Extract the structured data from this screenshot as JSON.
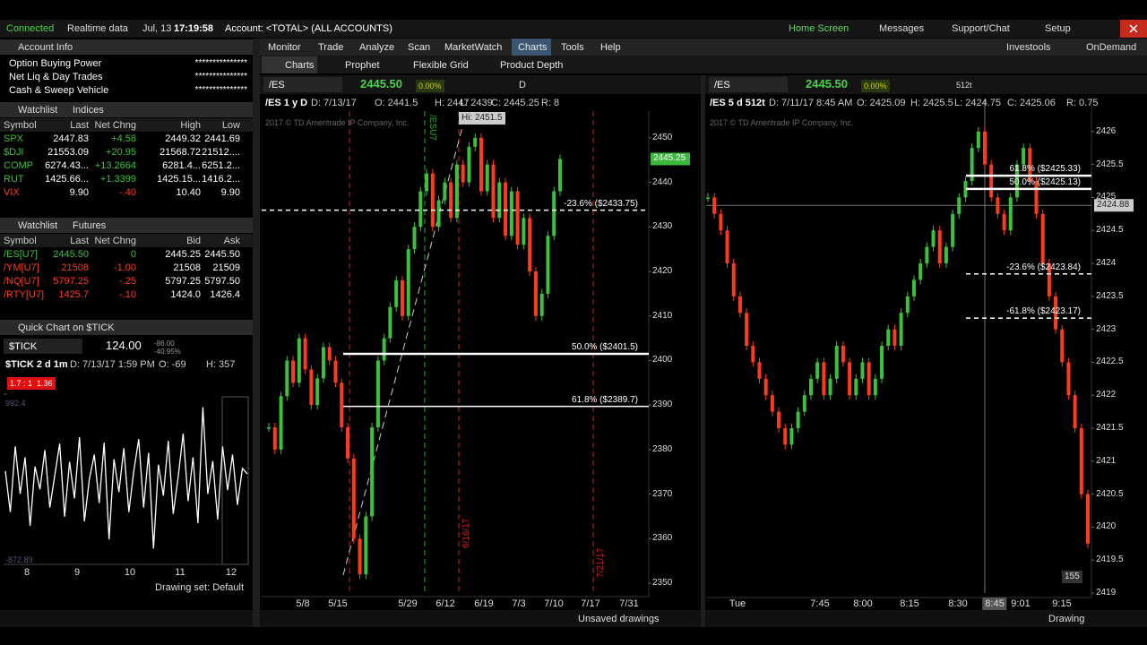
{
  "status_bar": {
    "connection": "Connected",
    "data_mode": "Realtime data",
    "date": "Jul, 13",
    "time": "17:19:58",
    "account": "Account: <TOTAL> (ALL ACCOUNTS)",
    "links": [
      "Home Screen",
      "Messages",
      "Support/Chat",
      "Setup"
    ]
  },
  "menu": {
    "items": [
      "Monitor",
      "Trade",
      "Analyze",
      "Scan",
      "MarketWatch",
      "Charts",
      "Tools",
      "Help"
    ],
    "right_links": [
      "Investools",
      "OnDemand"
    ]
  },
  "tabs": [
    "Charts",
    "Prophet",
    "Flexible Grid",
    "Product Depth"
  ],
  "account_info": {
    "title": "Account Info",
    "rows": [
      [
        "Option Buying Power",
        "***************"
      ],
      [
        "Net Liq & Day Trades",
        "***************"
      ],
      [
        "Cash & Sweep Vehicle",
        "***************"
      ]
    ]
  },
  "watchlists": [
    {
      "title": "Watchlist",
      "list": "Indices",
      "columns": [
        "Symbol",
        "Last",
        "Net Chng",
        "High",
        "Low"
      ],
      "rows": [
        [
          "SPX",
          "2447.83",
          "+4.58",
          "2449.32",
          "2441.69"
        ],
        [
          "$DJI",
          "21553.09",
          "+20.95",
          "21568.72",
          "21512...."
        ],
        [
          "COMP",
          "6274.43...",
          "+13.2664",
          "6281.4...",
          "6251.2..."
        ],
        [
          "RUT",
          "1425.66...",
          "+1.3399",
          "1425.15...",
          "1416.2..."
        ],
        [
          "VIX",
          "9.90",
          "-.40",
          "10.40",
          "9.90"
        ]
      ]
    },
    {
      "title": "Watchlist",
      "list": "Futures",
      "columns": [
        "Symbol",
        "Last",
        "Net Chng",
        "Bid",
        "Ask"
      ],
      "rows": [
        [
          "/ES[U7]",
          "2445.50",
          "0",
          "2445.25",
          "2445.50"
        ],
        [
          "/YM[U7]",
          "21508",
          "-1.00",
          "21508",
          "21509"
        ],
        [
          "/NQ[U7]",
          "5797.25",
          "-.25",
          "5797.25",
          "5797.50"
        ],
        [
          "/RTY[U7]",
          "1425.7",
          "-.10",
          "1424.0",
          "1426.4"
        ]
      ]
    }
  ],
  "quick_chart": {
    "title": "Quick Chart on $TICK",
    "symbol": "$TICK",
    "price": "124.00",
    "change": "-86.00",
    "change_pct": "-40.95%",
    "info": [
      "$TICK 2 d 1m",
      "D: 7/13/17 1:59 PM",
      "O: -69",
      "H: 357"
    ],
    "badges": [
      "1.7 : 1",
      "1.36"
    ],
    "chart": {
      "type": "line",
      "values": [
        150,
        -300,
        420,
        -100,
        300,
        -450,
        200,
        -50,
        380,
        -250,
        100,
        450,
        -350,
        250,
        -150,
        520,
        -400,
        60,
        330,
        -200,
        460,
        -600,
        280,
        -80,
        400,
        -300,
        150,
        500,
        -250,
        350,
        -700,
        220,
        -120,
        480,
        -320,
        90,
        560,
        -180,
        300,
        -420,
        850,
        -100,
        260,
        -380,
        420,
        -60,
        330,
        -220,
        180,
        120
      ],
      "ylim": [
        -872.89,
        992.4
      ],
      "yticks": [
        -872.89,
        992.4
      ],
      "x_labels": [
        "8",
        "9",
        "10",
        "11",
        "12"
      ]
    },
    "drawing_set": "Drawing set: Default"
  },
  "chart_data": [
    {
      "type": "candlestick",
      "symbol": "/ES",
      "last": "2445.50",
      "change_pct": "0.00%",
      "aggregation": "D",
      "info": [
        "/ES 1 y D",
        "D: 7/13/17",
        "O: 2441.5",
        "H: 2447",
        "L: 2439",
        "C: 2445.25",
        "R: 8"
      ],
      "copyright": "2017 © TD Ameritrade IP Company, Inc.",
      "values": [
        2385,
        2380,
        2392,
        2400,
        2395,
        2405,
        2398,
        2390,
        2396,
        2403,
        2400,
        2395,
        2385,
        2378,
        2360,
        2352,
        2365,
        2385,
        2400,
        2405,
        2412,
        2418,
        2410,
        2425,
        2430,
        2438,
        2442,
        2430,
        2436,
        2440,
        2432,
        2444,
        2440,
        2448,
        2450,
        2438,
        2444,
        2432,
        2440,
        2428,
        2438,
        2426,
        2432,
        2420,
        2410,
        2415,
        2428,
        2438,
        2445.25
      ],
      "ylim": [
        2348,
        2456
      ],
      "yticks": [
        2350,
        2360,
        2370,
        2380,
        2390,
        2400,
        2410,
        2420,
        2430,
        2440,
        2450
      ],
      "x_labels": [
        "5/8",
        "5/15",
        "5/29",
        "6/12",
        "6/19",
        "7/3",
        "7/10",
        "7/17",
        "7/31"
      ],
      "last_price_tag": 2445.25,
      "high_label": "Hi: 2451.5",
      "fib_levels": [
        {
          "label": "-23.6% ($2433.75)",
          "value": 2433.75
        },
        {
          "label": "50.0% ($2401.5)",
          "value": 2401.5
        },
        {
          "label": "61.8% ($2389.7)",
          "value": 2389.7
        }
      ],
      "markers": [
        "/ESU7",
        "6/16/17",
        "7/21/17"
      ],
      "drawings_label": "Unsaved drawings"
    },
    {
      "type": "candlestick",
      "symbol": "/ES",
      "last": "2445.50",
      "change_pct": "0.00%",
      "aggregation": "512t",
      "info": [
        "/ES 5 d 512t",
        "D: 7/11/17 8:45 AM",
        "O: 2425.09",
        "H: 2425.5",
        "L: 2424.75",
        "C: 2425.06",
        "R: 0.75"
      ],
      "copyright": "2017 © TD Ameritrade IP Company, Inc.",
      "values": [
        2425.0,
        2424.75,
        2424.5,
        2424.0,
        2423.5,
        2423.25,
        2422.75,
        2422.5,
        2422.25,
        2422.0,
        2421.75,
        2421.5,
        2421.25,
        2421.5,
        2421.75,
        2422.0,
        2422.25,
        2422.5,
        2422.0,
        2422.25,
        2422.75,
        2422.5,
        2422.0,
        2422.25,
        2422.5,
        2422.0,
        2422.25,
        2422.75,
        2423.0,
        2422.75,
        2423.25,
        2423.5,
        2423.75,
        2424.0,
        2424.25,
        2424.5,
        2424.0,
        2424.25,
        2424.75,
        2425.0,
        2425.25,
        2425.75,
        2426.0,
        2425.5,
        2425.0,
        2424.75,
        2424.5,
        2425.0,
        2425.5,
        2425.75,
        2425.25,
        2424.75,
        2424.0,
        2423.5,
        2423.0,
        2422.5,
        2422.0,
        2421.5,
        2420.5,
        2419.75
      ],
      "ylim": [
        2419,
        2426.5
      ],
      "yticks": [
        2419,
        2419.5,
        2420,
        2420.5,
        2421,
        2421.5,
        2422,
        2422.5,
        2423,
        2423.5,
        2424,
        2424.5,
        2425,
        2425.5,
        2426
      ],
      "x_labels": [
        "Tue",
        "7:45",
        "8:00",
        "8:15",
        "8:30",
        "8:45",
        "9:01",
        "9:15"
      ],
      "cursor_price": 2424.88,
      "fib_levels": [
        {
          "label": "61.8% ($2425.33)",
          "value": 2425.33
        },
        {
          "label": "50.0% ($2425.13)",
          "value": 2425.13
        },
        {
          "label": "-23.6% ($2423.84)",
          "value": 2423.84
        },
        {
          "label": "-61.8% ($2423.17)",
          "value": 2423.17
        }
      ],
      "tick_count_badge": "155",
      "drawings_label": "Drawing"
    }
  ]
}
